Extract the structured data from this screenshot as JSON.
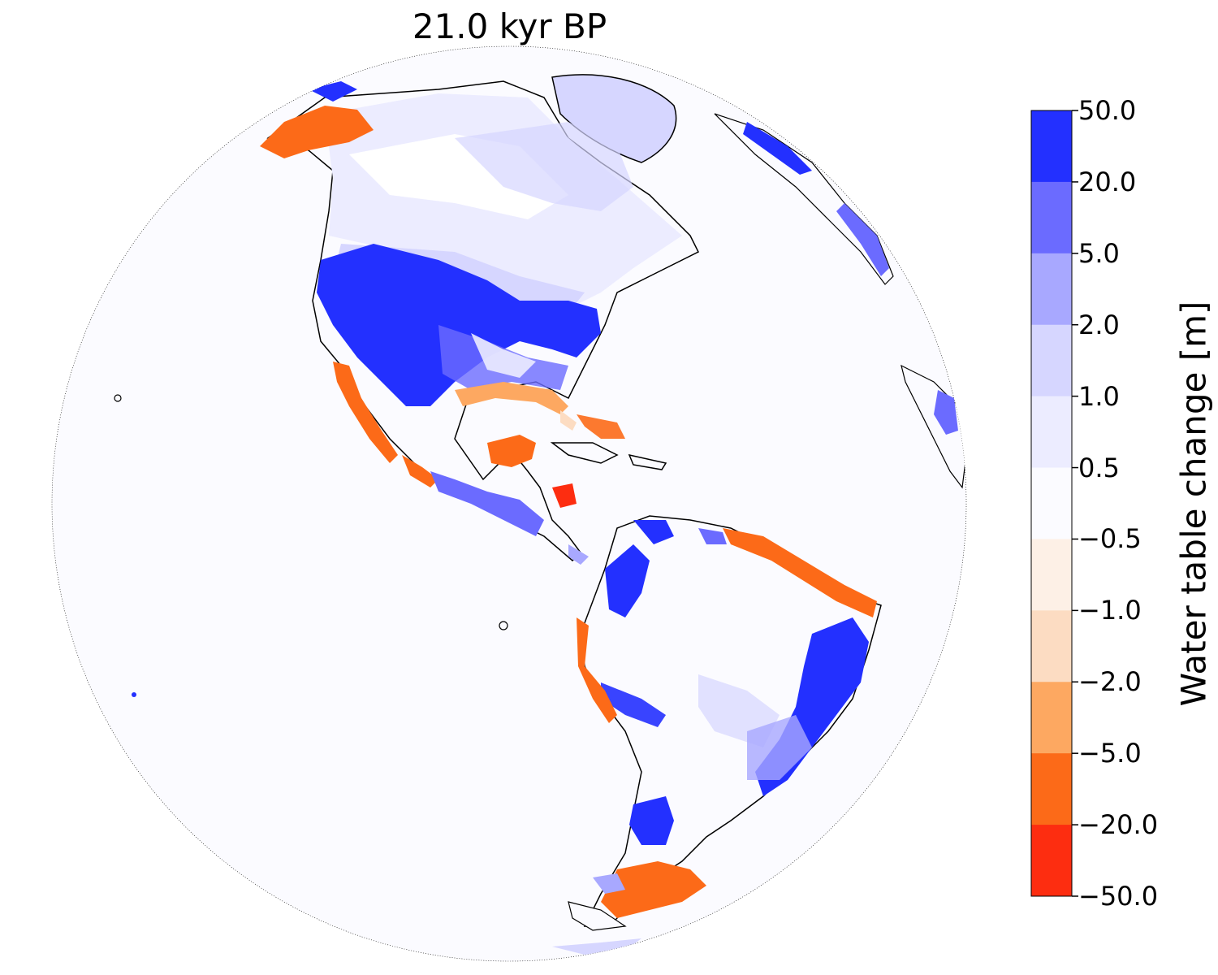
{
  "title": "21.0 kyr BP",
  "colorbar": {
    "label": "Water table change [m]",
    "ticks": [
      "50.0",
      "20.0",
      "5.0",
      "2.0",
      "1.0",
      "0.5",
      "−0.5",
      "−1.0",
      "−2.0",
      "−5.0",
      "−20.0",
      "−50.0"
    ],
    "bins": [
      {
        "from": "20.0",
        "to": "50.0",
        "color": "#2330ff"
      },
      {
        "from": "5.0",
        "to": "20.0",
        "color": "#6b6bff"
      },
      {
        "from": "2.0",
        "to": "5.0",
        "color": "#a8a8ff"
      },
      {
        "from": "1.0",
        "to": "2.0",
        "color": "#d6d6ff"
      },
      {
        "from": "0.5",
        "to": "1.0",
        "color": "#ececff"
      },
      {
        "from": "-0.5",
        "to": "0.5",
        "color": "#fbfbff"
      },
      {
        "from": "-1.0",
        "to": "-0.5",
        "color": "#fdf0e6"
      },
      {
        "from": "-2.0",
        "to": "-1.0",
        "color": "#fcdcc2"
      },
      {
        "from": "-5.0",
        "to": "-2.0",
        "color": "#fda861"
      },
      {
        "from": "-20.0",
        "to": "-5.0",
        "color": "#fc6a18"
      },
      {
        "from": "-50.0",
        "to": "-20.0",
        "color": "#fd2d10"
      }
    ]
  },
  "map": {
    "projection": "orthographic",
    "region": "Americas",
    "ocean_color": "#fbfbff",
    "coastline_color": "#000000"
  }
}
